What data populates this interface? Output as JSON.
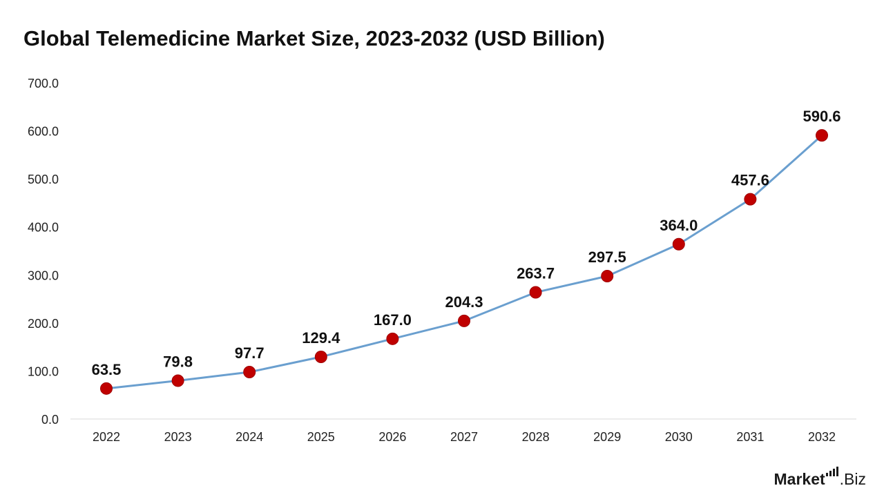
{
  "chart_data": {
    "type": "line",
    "title": "Global Telemedicine Market Size, 2023-2032 (USD Billion)",
    "xlabel": "",
    "ylabel": "",
    "categories": [
      "2022",
      "2023",
      "2024",
      "2025",
      "2026",
      "2027",
      "2028",
      "2029",
      "2030",
      "2031",
      "2032"
    ],
    "series": [
      {
        "values": [
          63.5,
          79.8,
          97.7,
          129.4,
          167.0,
          204.3,
          263.7,
          297.5,
          364.0,
          457.6,
          590.6
        ],
        "data_labels": [
          "63.5",
          "79.8",
          "97.7",
          "129.4",
          "167.0",
          "204.3",
          "263.7",
          "297.5",
          "364.0",
          "457.6",
          "590.6"
        ]
      }
    ],
    "ylim": [
      0,
      700
    ],
    "y_ticks": [
      0,
      100,
      200,
      300,
      400,
      500,
      600,
      700
    ],
    "y_tick_labels": [
      "0.0",
      "100.0",
      "200.0",
      "300.0",
      "400.0",
      "500.0",
      "600.0",
      "700.0"
    ],
    "grid": false,
    "legend": "none",
    "colors": {
      "line": "#6a9fcf",
      "marker": "#c00000",
      "marker_stroke": "#a00000",
      "axis": "#d9d9d9",
      "text": "#111111"
    }
  },
  "branding": {
    "logo_main": "Market",
    "logo_suffix": ".Biz"
  }
}
